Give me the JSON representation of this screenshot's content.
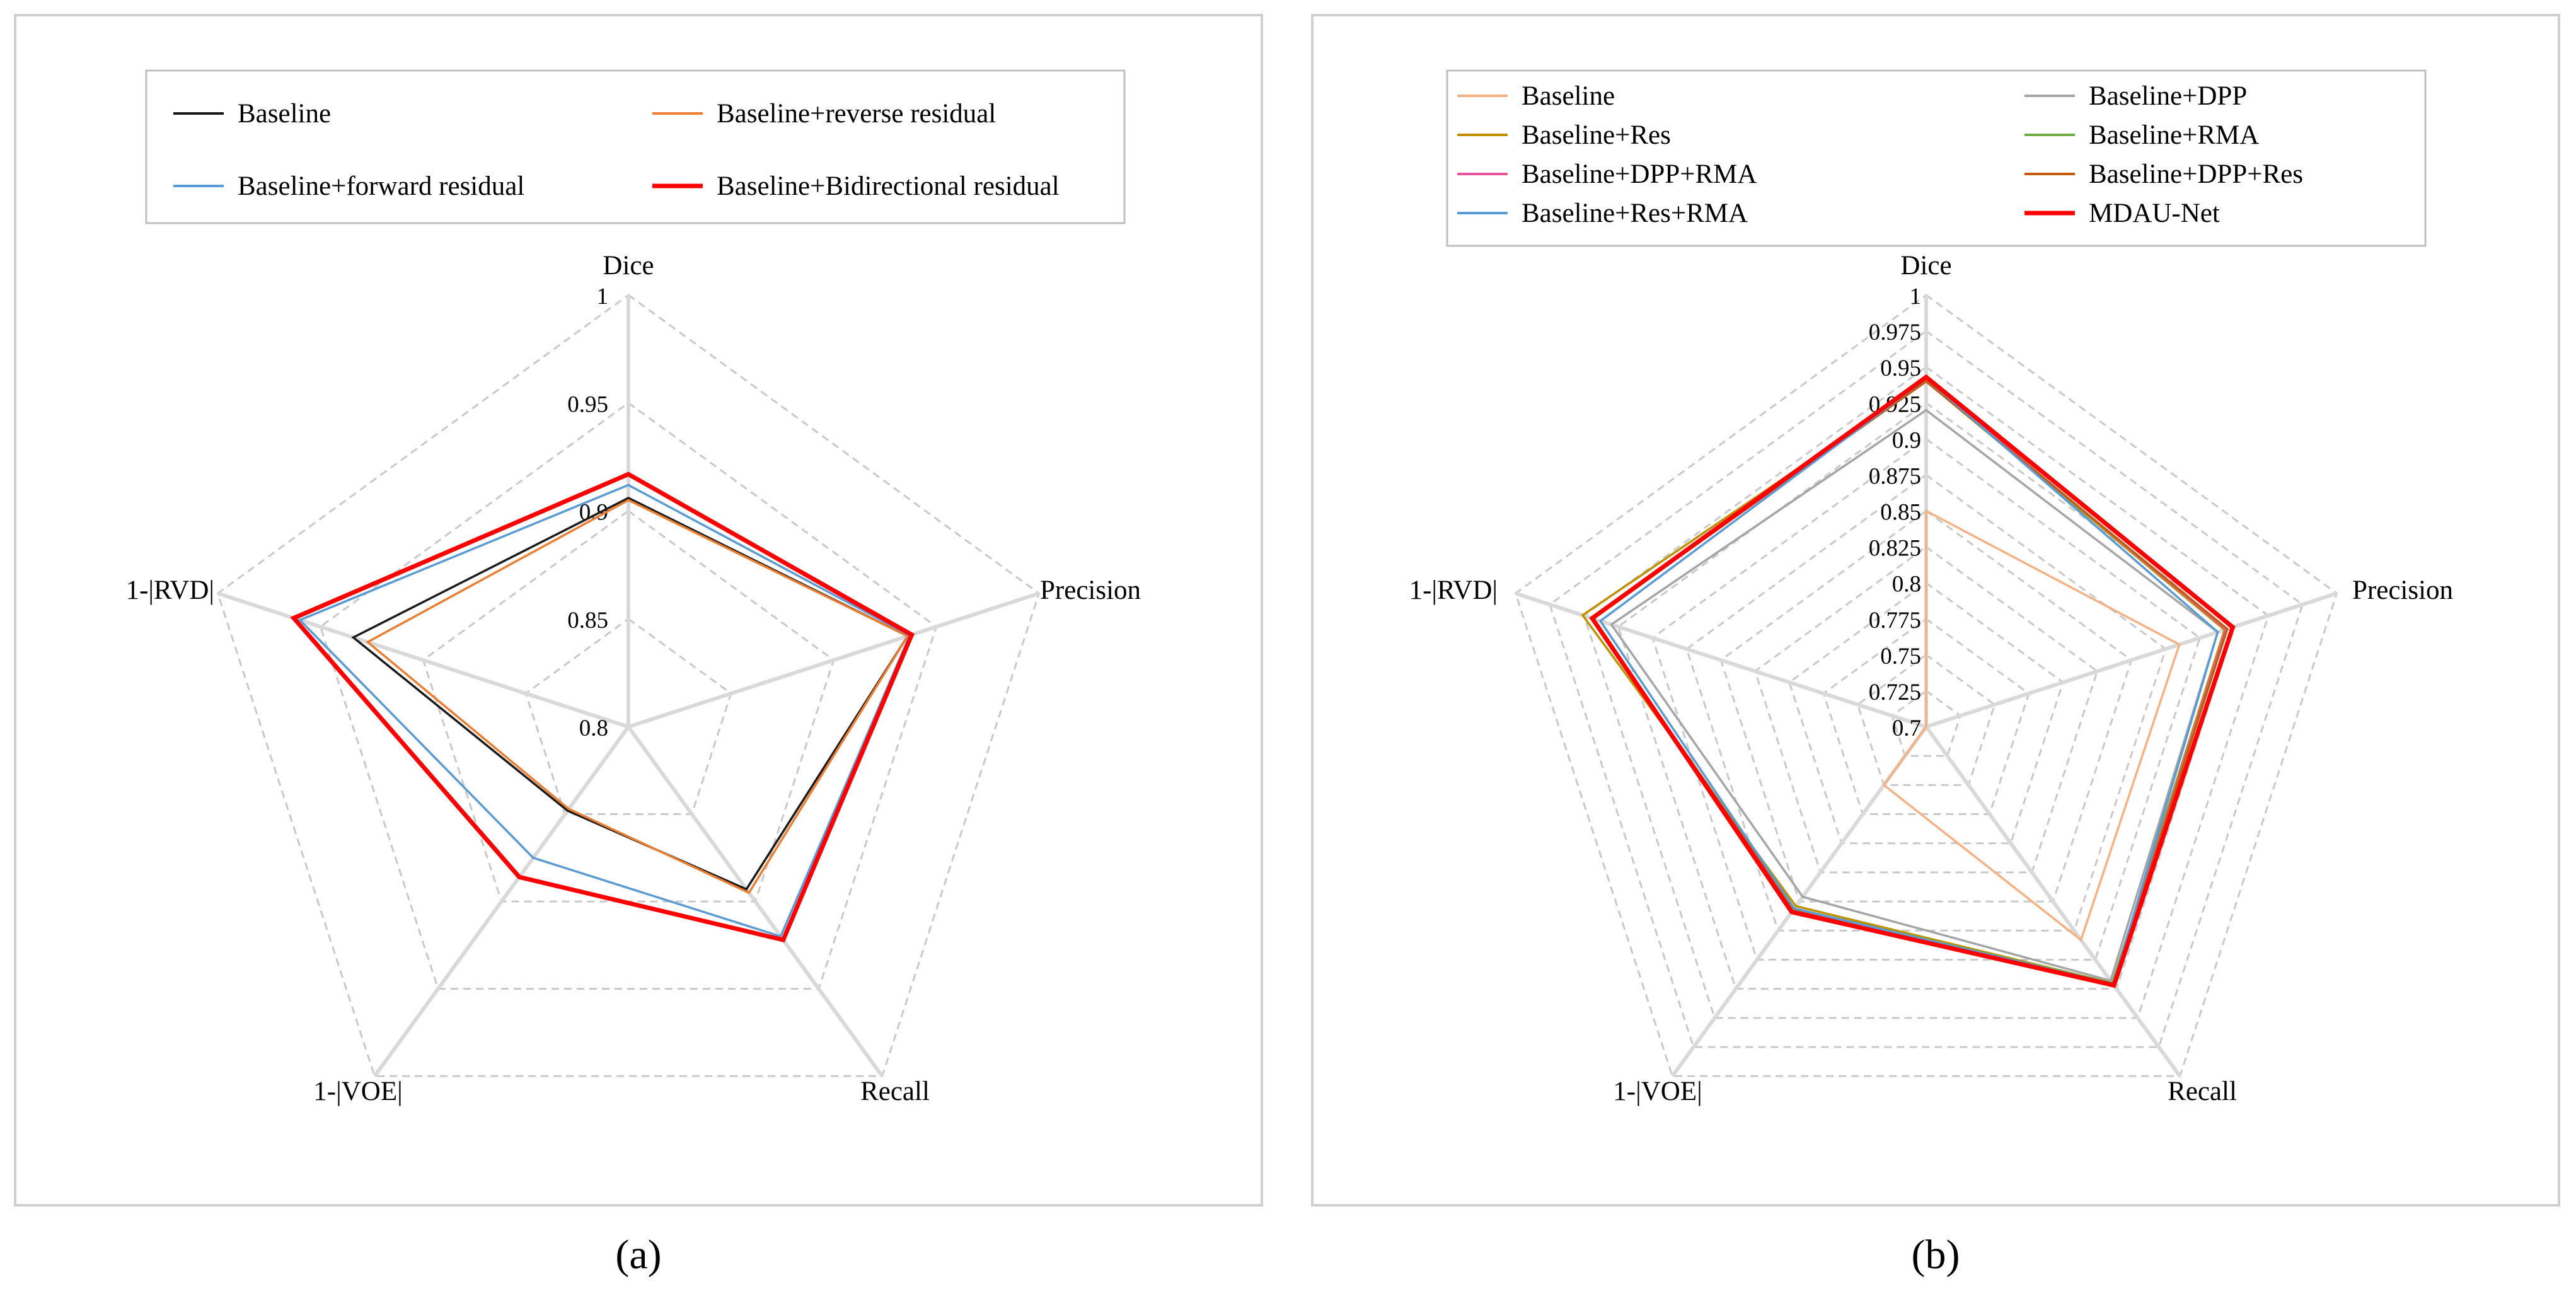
{
  "chart_data": [
    {
      "type": "radar",
      "caption": "(a)",
      "axes": [
        "Dice",
        "Precision",
        "Recall",
        "1-|VOE|",
        "1-|RVD|"
      ],
      "rlim": [
        0.8,
        1
      ],
      "ticks": [
        "0.8",
        "0.85",
        "0.9",
        "0.95",
        "1"
      ],
      "legend_position": "top",
      "series": [
        {
          "name": "Baseline",
          "color": "#1a1a1a",
          "values": [
            0.906,
            0.936,
            0.893,
            0.848,
            0.934
          ]
        },
        {
          "name": "Baseline+reverse residual",
          "color": "#ed7d31",
          "values": [
            0.905,
            0.936,
            0.895,
            0.847,
            0.927
          ]
        },
        {
          "name": "Baseline+forward residual",
          "color": "#5b9bd5",
          "values": [
            0.912,
            0.937,
            0.92,
            0.875,
            0.96
          ]
        },
        {
          "name": "Baseline+Bidirectional residual",
          "color": "#ff0000",
          "values": [
            0.917,
            0.938,
            0.922,
            0.886,
            0.963
          ]
        }
      ]
    },
    {
      "type": "radar",
      "caption": "(b)",
      "axes": [
        "Dice",
        "Precision",
        "Recall",
        "1-|VOE|",
        "1-|RVD|"
      ],
      "rlim": [
        0.7,
        1
      ],
      "ticks": [
        "0.7",
        "0.725",
        "0.75",
        "0.775",
        "0.8",
        "0.825",
        "0.85",
        "0.875",
        "0.9",
        "0.925",
        "0.95",
        "0.975",
        "1"
      ],
      "legend_position": "top",
      "series": [
        {
          "name": "Baseline",
          "color": "#f4b183",
          "values": [
            0.85,
            0.885,
            0.883,
            0.75,
            0.7
          ]
        },
        {
          "name": "Baseline+DPP",
          "color": "#a5a5a5",
          "values": [
            0.92,
            0.913,
            0.918,
            0.846,
            0.93
          ]
        },
        {
          "name": "Baseline+Res",
          "color": "#bf9000",
          "values": [
            0.94,
            0.918,
            0.92,
            0.854,
            0.951
          ]
        },
        {
          "name": "Baseline+RMA",
          "color": "#70ad47",
          "values": [
            0.94,
            0.919,
            0.92,
            0.856,
            0.945
          ]
        },
        {
          "name": "Baseline+DPP+RMA",
          "color": "#e8549b",
          "values": [
            0.941,
            0.919,
            0.921,
            0.857,
            0.944
          ]
        },
        {
          "name": "Baseline+DPP+Res",
          "color": "#c55a11",
          "values": [
            0.94,
            0.92,
            0.921,
            0.857,
            0.944
          ]
        },
        {
          "name": "Baseline+Res+RMA",
          "color": "#5b9bd5",
          "values": [
            0.942,
            0.913,
            0.921,
            0.856,
            0.938
          ]
        },
        {
          "name": "MDAU-Net",
          "color": "#ff0000",
          "values": [
            0.943,
            0.924,
            0.922,
            0.859,
            0.944
          ]
        }
      ]
    }
  ]
}
